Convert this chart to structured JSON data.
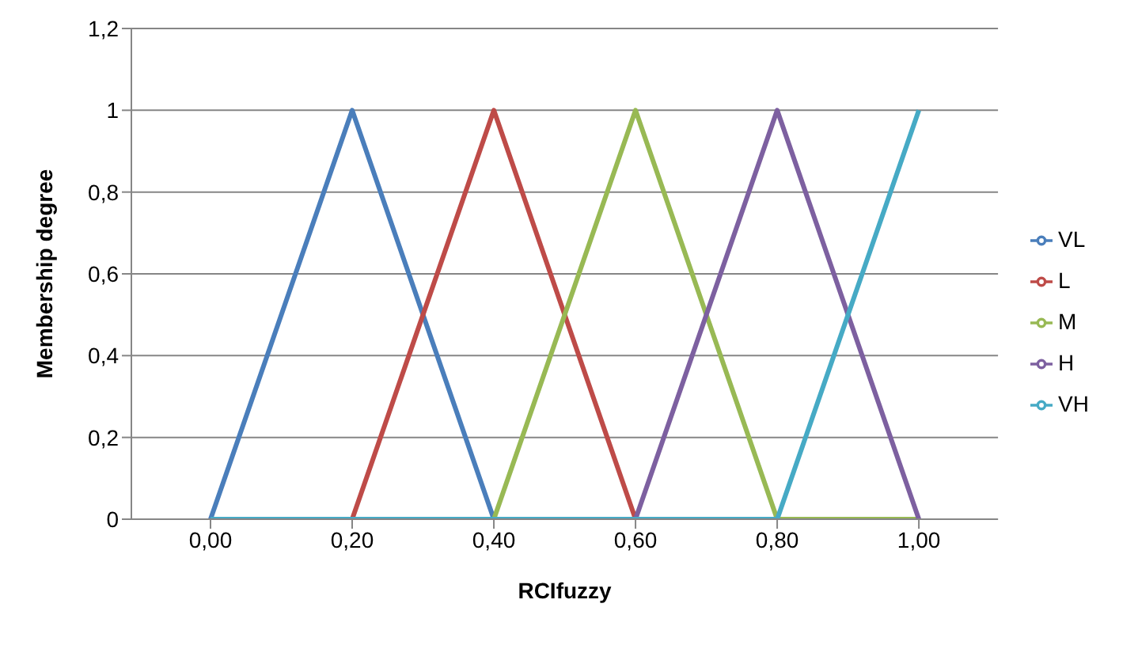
{
  "chart_data": {
    "type": "line",
    "xlabel": "RCIfuzzy",
    "ylabel": "Membership degree",
    "categories": [
      "0,00",
      "0,20",
      "0,40",
      "0,60",
      "0,80",
      "1,00"
    ],
    "series": [
      {
        "name": "VL",
        "color": "#4a7ebb",
        "values": [
          0,
          1,
          0,
          0,
          0,
          0
        ]
      },
      {
        "name": "L",
        "color": "#be4b48",
        "values": [
          0,
          0,
          1,
          0,
          0,
          0
        ]
      },
      {
        "name": "M",
        "color": "#98b954",
        "values": [
          0,
          0,
          0,
          1,
          0,
          0
        ]
      },
      {
        "name": "H",
        "color": "#7d60a0",
        "values": [
          0,
          0,
          0,
          0,
          1,
          0
        ]
      },
      {
        "name": "VH",
        "color": "#46aac5",
        "values": [
          0,
          0,
          0,
          0,
          0,
          1
        ]
      }
    ],
    "ylim": [
      0,
      1.2
    ],
    "yticks": [
      0,
      {
        "value": 0.2,
        "label": "0,2"
      },
      {
        "value": 0.4,
        "label": "0,4"
      },
      {
        "value": 0.6,
        "label": "0,6"
      },
      {
        "value": 0.8,
        "label": "0,8"
      },
      1,
      {
        "value": 1.2,
        "label": "1,2"
      }
    ],
    "grid": "y",
    "legend": "right",
    "marker": "none",
    "line_style": "solid"
  }
}
